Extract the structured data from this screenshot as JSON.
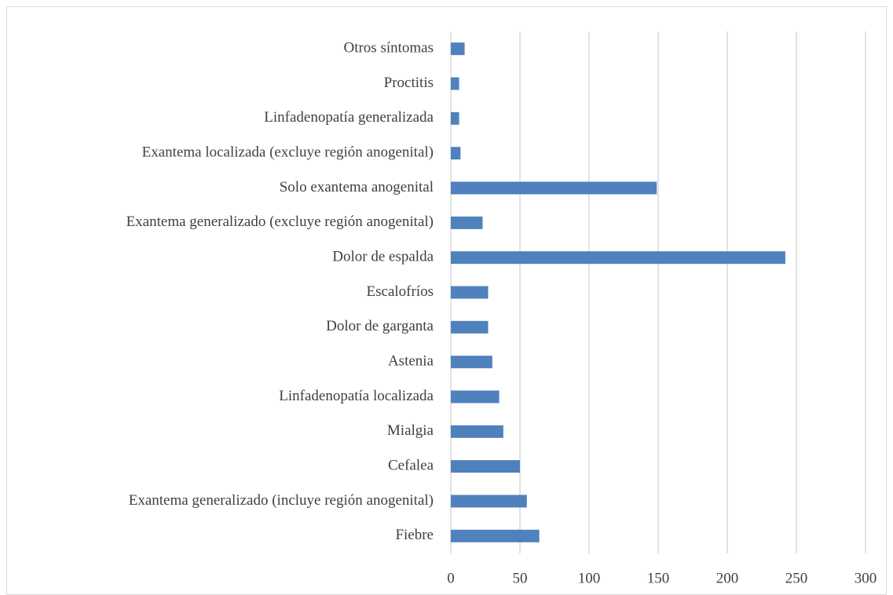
{
  "chart_data": {
    "type": "bar",
    "orientation": "horizontal",
    "categories": [
      "Fiebre",
      "Exantema generalizado (incluye región anogenital)",
      "Cefalea",
      "Mialgia",
      "Linfadenopatía localizada",
      "Astenia",
      "Dolor de garganta",
      "Escalofríos",
      "Dolor de espalda",
      "Exantema generalizado (excluye región anogenital)",
      "Solo exantema anogenital",
      "Exantema localizada (excluye región anogenital)",
      "Linfadenopatía generalizada",
      "Proctitis",
      "Otros síntomas"
    ],
    "values": [
      64,
      55,
      50,
      38,
      35,
      30,
      27,
      27,
      242,
      23,
      149,
      7,
      6,
      6,
      10
    ],
    "color": "#4f81bd",
    "xlim": [
      0,
      300
    ],
    "xticks": [
      0,
      50,
      100,
      150,
      200,
      250,
      300
    ],
    "grid": true
  }
}
